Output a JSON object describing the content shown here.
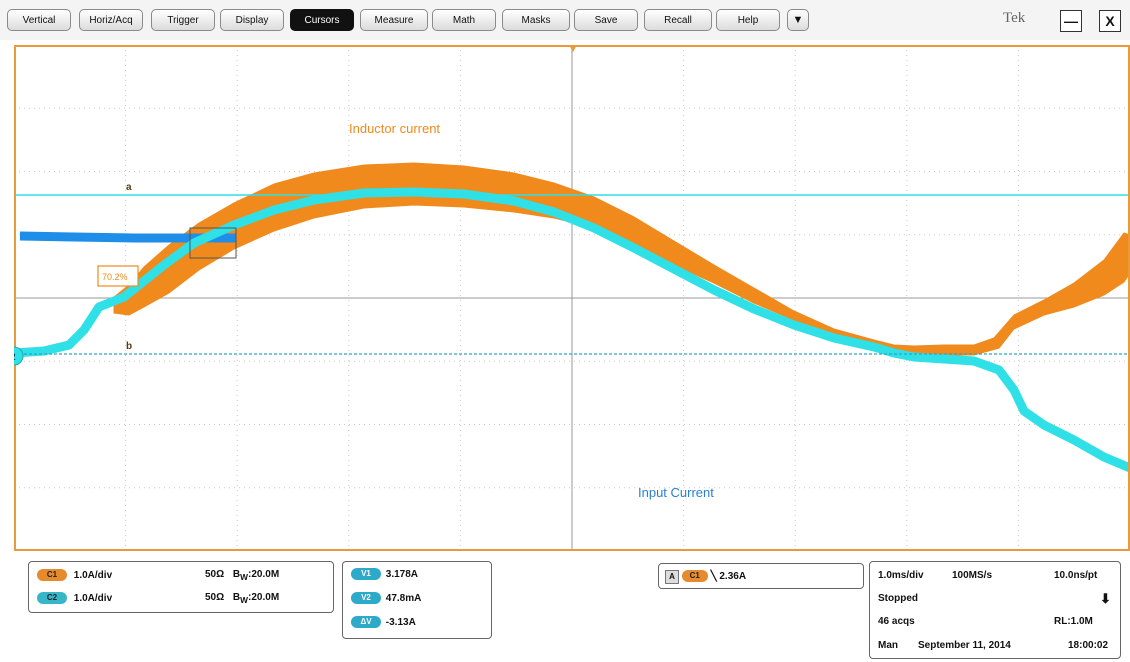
{
  "menu": {
    "items": [
      "Vertical",
      "Horiz/Acq",
      "Trigger",
      "Display",
      "Cursors",
      "Measure",
      "Math",
      "Masks",
      "Save",
      "Recall",
      "Help"
    ],
    "active": "Cursors",
    "more_glyph": "▼"
  },
  "brand": "Tek",
  "window": {
    "minimize_glyph": "—",
    "close_glyph": "X"
  },
  "plot": {
    "label_inductor": "Inductor current",
    "label_input": "Input Current",
    "cursor_a": "a",
    "cursor_b": "b",
    "ch2_marker": "2",
    "ref_tag": "70.2%",
    "colors": {
      "orange": "#f08a1c",
      "cyan": "#2fe0e6",
      "blue": "#1f8ee8",
      "frame": "#e99a3a",
      "grid": "#c8c8c8"
    }
  },
  "channels": [
    {
      "chip": "C1",
      "scale": "1.0A/div",
      "impedance": "50Ω",
      "bw": "20.0M",
      "bw_prefix": "B",
      "bw_sub": "W",
      "color": "#e58a2d"
    },
    {
      "chip": "C2",
      "scale": "1.0A/div",
      "impedance": "50Ω",
      "bw": "20.0M",
      "bw_prefix": "B",
      "bw_sub": "W",
      "color": "#36b6c8"
    }
  ],
  "cursors": [
    {
      "chip": "V1",
      "value": "3.178A"
    },
    {
      "chip": "V2",
      "value": "47.8mA"
    },
    {
      "chip": "ΔV",
      "value": "-3.13A"
    }
  ],
  "trigger": {
    "mode": "A",
    "chip": "C1",
    "slope_glyph": "╲",
    "level": "2.36A"
  },
  "acquisition": {
    "timebase": "1.0ms/div",
    "rate": "100MS/s",
    "resolution": "10.0ns/pt",
    "state": "Stopped",
    "state_glyph": "⬇",
    "acqs": "46 acqs",
    "record": "RL:1.0M",
    "trigger_mode": "Man",
    "date": "September 11, 2014",
    "time": "18:00:02"
  }
}
